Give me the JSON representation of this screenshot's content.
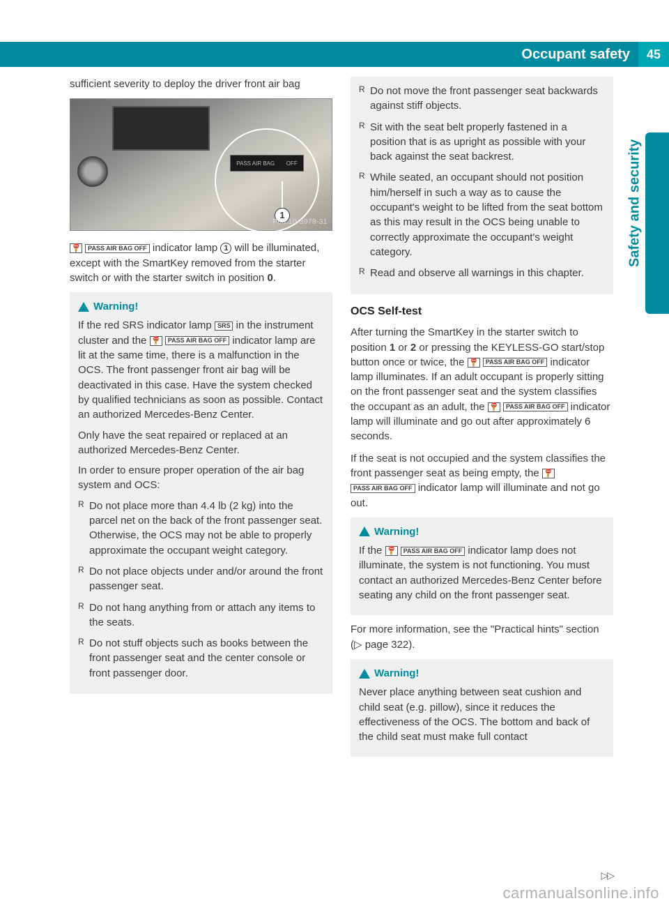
{
  "header": {
    "title": "Occupant safety",
    "page_number": "45",
    "side_label": "Safety and security"
  },
  "colors": {
    "teal_dark": "#008b9e",
    "teal_light": "#00a7b5",
    "warning_bg": "#eef0f0",
    "body_text": "#3a3a3a"
  },
  "figure": {
    "id_label": "P68.10-3978-31",
    "plate_left": "PASS  AIR  BAG",
    "plate_right": "OFF",
    "callout": "1"
  },
  "left": {
    "p1": "sufficient severity to deploy the driver front air bag",
    "p2a": " indicator lamp ",
    "p2b": " will be illuminated, except with the SmartKey removed from the starter switch or with the starter switch in position ",
    "p2_bold": "0",
    "p2c": ".",
    "warn1": {
      "heading": "Warning!",
      "p1a": "If the red SRS indicator lamp ",
      "p1b": " in the instrument cluster and the ",
      "p1c": " indicator lamp are lit at the same time, there is a malfunction in the OCS. The front passenger front air bag will be deactivated in this case. Have the system checked by qualified technicians as soon as possible. Contact an authorized Mercedes-Benz Center.",
      "p2": "Only have the seat repaired or replaced at an authorized Mercedes-Benz Center.",
      "p3": "In order to ensure proper operation of the air bag system and OCS:",
      "li1": "Do not place more than 4.4 lb (2 kg) into the parcel net on the back of the front passenger seat. Otherwise, the OCS may not be able to properly approximate the occupant weight category.",
      "li2": "Do not place objects under and/or around the front passenger seat.",
      "li3": "Do not hang anything from or attach any items to the seats.",
      "li4": "Do not stuff objects such as books between the front passenger seat and the center console or front passenger door."
    }
  },
  "right": {
    "warn1_cont": {
      "li5": "Do not move the front passenger seat backwards against stiff objects.",
      "li6": "Sit with the seat belt properly fastened in a position that is as upright as possible with your back against the seat backrest.",
      "li7": "While seated, an occupant should not position him/herself in such a way as to cause the occupant's weight to be lifted from the seat bottom as this may result in the OCS being unable to correctly approximate the occupant's weight category.",
      "li8": "Read and observe all warnings in this chapter."
    },
    "section_heading": "OCS Self-test",
    "p1a": "After turning the SmartKey in the starter switch to position ",
    "p1_b1": "1",
    "p1b": " or ",
    "p1_b2": "2",
    "p1c": " or pressing the KEYLESS-GO start/stop button once or twice, the ",
    "p1d": " indicator lamp illuminates. If an adult occupant is properly sitting on the front passenger seat and the system classifies the occupant as an adult, the ",
    "p1e": " indicator lamp will illuminate and go out after approximately 6 seconds.",
    "p2a": "If the seat is not occupied and the system classifies the front passenger seat as being empty, the ",
    "p2b": " indicator lamp will illuminate and not go out.",
    "warn2": {
      "heading": "Warning!",
      "p1a": "If the ",
      "p1b": " indicator lamp does not illuminate, the system is not functioning. You must contact an authorized Mercedes-Benz Center before seating any child on the front passenger seat."
    },
    "p3a": "For more information, see the \"Practical hints\" section (",
    "p3_ref": "▷ page 322",
    "p3b": ").",
    "warn3": {
      "heading": "Warning!",
      "p1": "Never place anything between seat cushion and child seat (e.g. pillow), since it reduces the effectiveness of the OCS. The bottom and back of the child seat must make full contact"
    }
  },
  "icons": {
    "srs": "SRS",
    "pass_air_bag_off": "PASS AIR BAG OFF"
  },
  "footer": {
    "cont": "▷▷",
    "watermark": "carmanualsonline.info"
  }
}
